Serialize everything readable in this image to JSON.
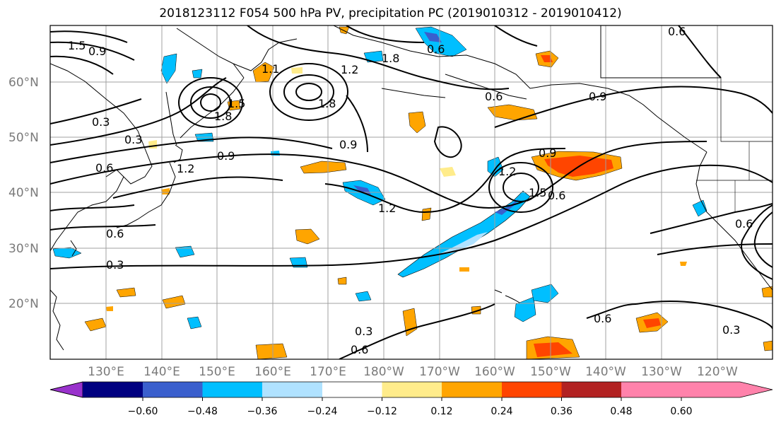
{
  "title": "2018123112 F054 500 hPa PV, precipitation PC (2019010312 - 2019010412)",
  "map": {
    "lat_labels": [
      "60°N",
      "50°N",
      "40°N",
      "30°N",
      "20°N"
    ],
    "lon_labels": [
      "130°E",
      "140°E",
      "150°E",
      "160°E",
      "170°E",
      "180°W",
      "170°W",
      "160°W",
      "150°W",
      "140°W",
      "130°W",
      "120°W"
    ],
    "contour_labels": [
      "1.5",
      "0.9",
      "0.3",
      "0.3",
      "0.6",
      "1.2",
      "0.9",
      "1.8",
      "1.5",
      "1.1",
      "1.8",
      "1.2",
      "1.8",
      "0.6",
      "0.6",
      "0.9",
      "0.9",
      "1.2",
      "1.2",
      "0.9",
      "1.5",
      "0.6",
      "0.3",
      "0.6",
      "0.3",
      "0.6",
      "0.3",
      "0.6",
      "0.6",
      "0.6"
    ]
  },
  "colorbar": {
    "tick_labels": [
      "−0.60",
      "−0.48",
      "−0.36",
      "−0.24",
      "−0.12",
      "0.12",
      "0.24",
      "0.36",
      "0.48",
      "0.60"
    ],
    "colors": [
      "#9932cc",
      "#000080",
      "#3a5fcd",
      "#00bfff",
      "#b0e2ff",
      "#ffffff",
      "#ffec8b",
      "#ffa500",
      "#ff4500",
      "#b22222",
      "#ff82ab"
    ]
  },
  "fill_colors": {
    "orange": "#ffa500",
    "light_yellow": "#ffec8b",
    "red": "#ff4500",
    "blue": "#00bfff",
    "light_blue": "#b0e2ff",
    "mid_blue": "#3a5fcd"
  }
}
